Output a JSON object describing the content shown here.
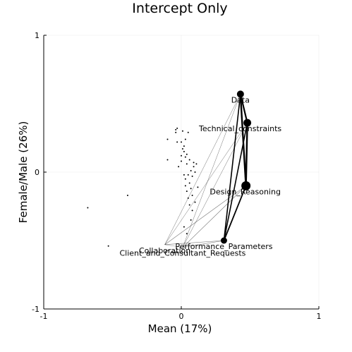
{
  "chart_data": {
    "type": "scatter",
    "title": "Intercept Only",
    "xlabel": "Mean (17%)",
    "ylabel": "Female/Male (26%)",
    "xlim": [
      -1,
      1
    ],
    "ylim": [
      -1,
      1
    ],
    "xticks": [
      "-1",
      "0",
      "1"
    ],
    "yticks": [
      "-1",
      "0",
      "1"
    ],
    "grid": true,
    "small_points": [
      {
        "x": -0.68,
        "y": -0.26
      },
      {
        "x": -0.53,
        "y": -0.54
      },
      {
        "x": -0.39,
        "y": -0.17
      },
      {
        "x": -0.1,
        "y": 0.09
      },
      {
        "x": -0.1,
        "y": 0.24
      },
      {
        "x": -0.04,
        "y": 0.29
      },
      {
        "x": -0.04,
        "y": 0.31
      },
      {
        "x": -0.03,
        "y": 0.32
      },
      {
        "x": -0.03,
        "y": 0.22
      },
      {
        "x": -0.02,
        "y": 0.04
      },
      {
        "x": 0.0,
        "y": 0.08
      },
      {
        "x": 0.0,
        "y": 0.12
      },
      {
        "x": 0.0,
        "y": 0.22
      },
      {
        "x": 0.01,
        "y": 0.3
      },
      {
        "x": 0.01,
        "y": 0.17
      },
      {
        "x": 0.02,
        "y": 0.15
      },
      {
        "x": 0.02,
        "y": 0.19
      },
      {
        "x": 0.02,
        "y": -0.02
      },
      {
        "x": 0.03,
        "y": 0.11
      },
      {
        "x": 0.03,
        "y": 0.24
      },
      {
        "x": 0.03,
        "y": -0.05
      },
      {
        "x": 0.03,
        "y": -0.1
      },
      {
        "x": 0.04,
        "y": 0.13
      },
      {
        "x": 0.04,
        "y": 0.06
      },
      {
        "x": 0.04,
        "y": -0.14
      },
      {
        "x": 0.05,
        "y": 0.29
      },
      {
        "x": 0.05,
        "y": -0.02
      },
      {
        "x": 0.05,
        "y": -0.19
      },
      {
        "x": 0.06,
        "y": 0.09
      },
      {
        "x": 0.06,
        "y": -0.08
      },
      {
        "x": 0.06,
        "y": -0.24
      },
      {
        "x": 0.07,
        "y": 0.01
      },
      {
        "x": 0.07,
        "y": -0.12
      },
      {
        "x": 0.07,
        "y": -0.35
      },
      {
        "x": 0.08,
        "y": -0.03
      },
      {
        "x": 0.08,
        "y": -0.17
      },
      {
        "x": 0.08,
        "y": -0.28
      },
      {
        "x": 0.09,
        "y": 0.04
      },
      {
        "x": 0.09,
        "y": 0.07
      },
      {
        "x": 0.1,
        "y": -0.0
      },
      {
        "x": 0.1,
        "y": -0.22
      },
      {
        "x": 0.11,
        "y": 0.06
      },
      {
        "x": 0.12,
        "y": -0.11
      },
      {
        "x": 0.02,
        "y": -0.4
      },
      {
        "x": 0.04,
        "y": -0.45
      }
    ],
    "nodes": [
      {
        "name": "Data",
        "x": 0.43,
        "y": 0.57,
        "r": 5,
        "label": "Data"
      },
      {
        "name": "Technical_constraints",
        "x": 0.48,
        "y": 0.36,
        "r": 5.5,
        "label": "Technical_constraints"
      },
      {
        "name": "Design_Reasoning",
        "x": 0.47,
        "y": -0.1,
        "r": 6.5,
        "label": "Design_Reasoning"
      },
      {
        "name": "Performance_Parameters",
        "x": 0.31,
        "y": -0.5,
        "r": 4.5,
        "label": "Performance_Parameters"
      },
      {
        "name": "Collaboration",
        "x": -0.12,
        "y": -0.53,
        "r": 0,
        "label": "Collaboration"
      },
      {
        "name": "Client_and_Consultant_Requests",
        "x": 0.01,
        "y": -0.55,
        "r": 0,
        "label": "Client_and_Consultant_Requests"
      }
    ],
    "edges": [
      {
        "from": 0,
        "to": 1,
        "w": 2.2
      },
      {
        "from": 0,
        "to": 2,
        "w": 2.4
      },
      {
        "from": 0,
        "to": 3,
        "w": 1.6
      },
      {
        "from": 1,
        "to": 2,
        "w": 2.4
      },
      {
        "from": 1,
        "to": 3,
        "w": 1.6
      },
      {
        "from": 2,
        "to": 3,
        "w": 1.8
      },
      {
        "from": 4,
        "to": 0,
        "w": 0.5
      },
      {
        "from": 4,
        "to": 1,
        "w": 0.5
      },
      {
        "from": 4,
        "to": 2,
        "w": 0.6
      },
      {
        "from": 4,
        "to": 3,
        "w": 0.6
      },
      {
        "from": 5,
        "to": 0,
        "w": 0.5
      },
      {
        "from": 5,
        "to": 1,
        "w": 0.5
      },
      {
        "from": 5,
        "to": 2,
        "w": 0.6
      },
      {
        "from": 5,
        "to": 3,
        "w": 0.6
      },
      {
        "from": 4,
        "to": 5,
        "w": 0.4
      }
    ]
  }
}
